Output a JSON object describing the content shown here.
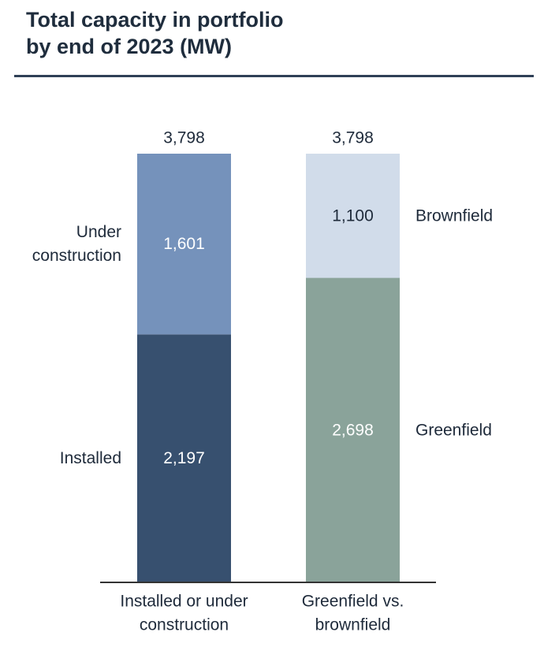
{
  "header": {
    "title_line1": "Total capacity in portfolio",
    "title_line2": "by end of 2023 (MW)"
  },
  "colors": {
    "installed": "#37506f",
    "under_construction": "#7592bb",
    "greenfield": "#8aa39a",
    "brownfield": "#d1dcea",
    "title_rule": "#2f4056",
    "axis": "#333333",
    "text_dark": "#1e2a3a",
    "text_light": "#ffffff"
  },
  "chart_data": {
    "type": "bar",
    "stacked": true,
    "categories": [
      "Installed or under construction",
      "Greenfield vs. brownfield"
    ],
    "category_labels": [
      [
        "Installed or under",
        "construction"
      ],
      [
        "Greenfield vs.",
        "brownfield"
      ]
    ],
    "totals": [
      "3,798",
      "3,798"
    ],
    "total_values": [
      3798,
      3798
    ],
    "bars": [
      {
        "category": "Installed or under construction",
        "segments": [
          {
            "name": "Installed",
            "name_lines": [
              "Installed"
            ],
            "value": 2197,
            "label": "2,197",
            "color": "#37506f",
            "label_color": "#ffffff",
            "label_side": "left"
          },
          {
            "name": "Under construction",
            "name_lines": [
              "Under",
              "construction"
            ],
            "value": 1601,
            "label": "1,601",
            "color": "#7592bb",
            "label_color": "#ffffff",
            "label_side": "left"
          }
        ]
      },
      {
        "category": "Greenfield vs. brownfield",
        "segments": [
          {
            "name": "Greenfield",
            "name_lines": [
              "Greenfield"
            ],
            "value": 2698,
            "label": "2,698",
            "color": "#8aa39a",
            "label_color": "#ffffff",
            "label_side": "right"
          },
          {
            "name": "Brownfield",
            "name_lines": [
              "Brownfield"
            ],
            "value": 1100,
            "label": "1,100",
            "color": "#d1dcea",
            "label_color": "#1e2a3a",
            "label_side": "right"
          }
        ]
      }
    ],
    "ylim": [
      0,
      3798
    ],
    "xlabel": "",
    "ylabel": "",
    "grid": false,
    "legend": "none"
  }
}
